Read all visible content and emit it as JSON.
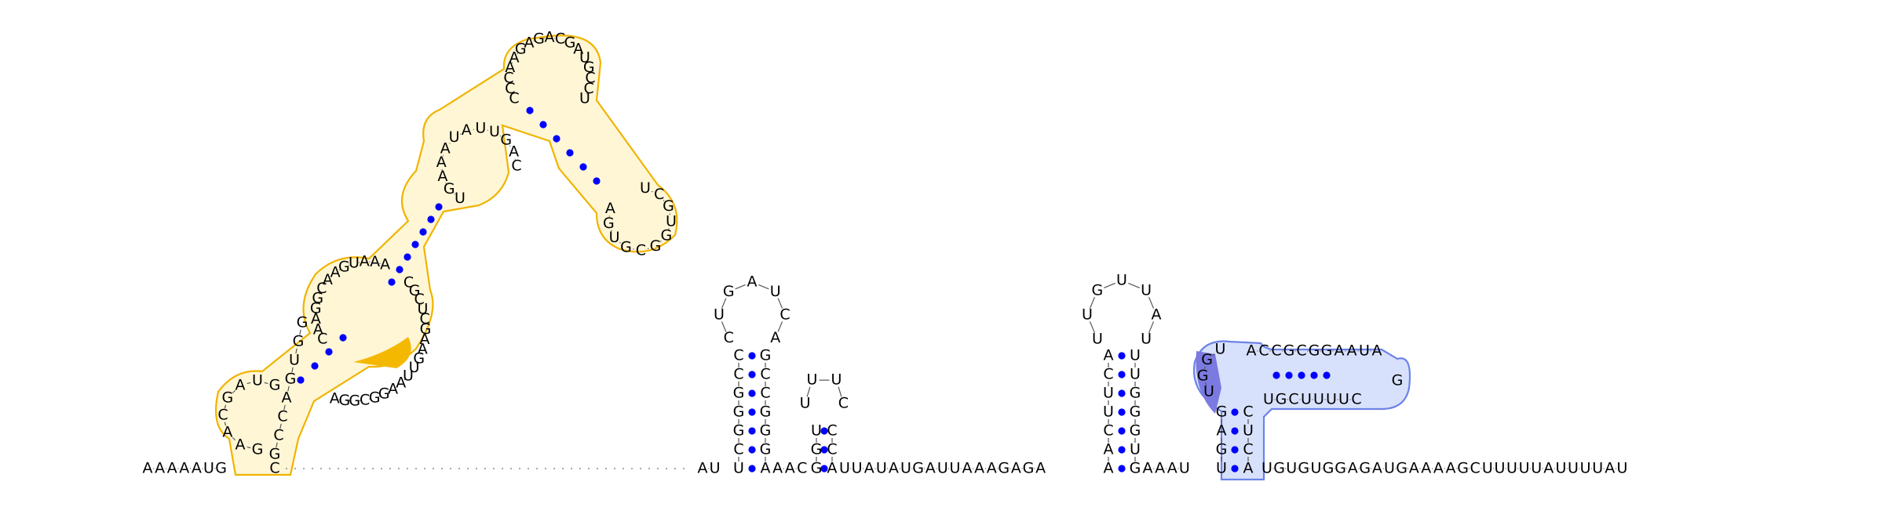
{
  "colors": {
    "background": "#ffffff",
    "base_pair_dot": "#0000ff",
    "highlight_1_outline": "#f0b400",
    "highlight_1_fill": "#fff6d6",
    "highlight_1_strong": "#f5b800",
    "highlight_2_outline": "#6d83e8",
    "highlight_2_fill": "#d8e1fb",
    "highlight_2_strong": "#7a7ae0"
  },
  "baseline": {
    "left": "AAAAAUG",
    "left_tail": "C",
    "pre_hp1": "AU",
    "hp1_join": "AAC",
    "mid": "UUAUAUGAUUAAAGAGA",
    "mid2": "AAAU",
    "right": "UGUGUGGAGAUGAAAAGCUUUUUAUUUUAU"
  },
  "hairpin1": {
    "stem_left": "UCGGGCC",
    "stem_right": "GCCGGGA",
    "loop": "CUGAUCA"
  },
  "hairpin2": {
    "stem_left": "GGU",
    "stem_right": "CCA",
    "loop": "UUUC"
  },
  "hairpin3": {
    "stem_left": "AACUUCA",
    "stem_right": "UUGGGUG",
    "loop": "UUGUUAU"
  },
  "pseudoknot": {
    "col_left": "GAGU",
    "col_right": "ACUC",
    "bulge": "UGGU",
    "top": "ACCGCGGAAUA",
    "bottom": "UGCUUUUC",
    "tip": "G"
  },
  "big_structure": {
    "lower_left_loop": "GAACGAUG",
    "lower_left_right": "GCCAGUGG",
    "mid_left": "CAAGGCAAGUAAA",
    "mid_right": "CGCUCGAAGUUAAGGCGGA",
    "upper_left": "UGAAAUAUUGAC",
    "top": "CCCAAGAGACGAUGCCU",
    "right_loop": "UCGUGGCGUGA"
  }
}
